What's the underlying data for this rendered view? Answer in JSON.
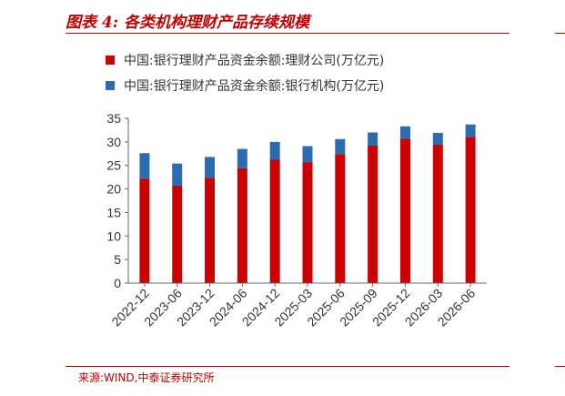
{
  "figure": {
    "title": "图表 4:  各类机构理财产品存续规模",
    "source": "来源:WIND,中泰证券研究所"
  },
  "colors": {
    "bank_subsidiary": "#cc0000",
    "bank": "#2b6cb0",
    "accent": "#c00000"
  },
  "chart_data": {
    "type": "bar",
    "stacked": true,
    "categories": [
      "2022-12",
      "2023-06",
      "2023-12",
      "2024-06",
      "2024-12",
      "2025-03",
      "2025-06",
      "2025-09",
      "2025-12",
      "2026-03",
      "2026-06"
    ],
    "series": [
      {
        "name": "中国:银行理财产品资金余额:理财公司(万亿元)",
        "color": "#cc0000",
        "values": [
          22.2,
          20.7,
          22.4,
          24.4,
          26.2,
          25.7,
          27.4,
          29.2,
          30.7,
          29.4,
          31.1
        ]
      },
      {
        "name": "中国:银行理财产品资金余额:银行机构(万亿元)",
        "color": "#2b6cb0",
        "values": [
          5.4,
          4.7,
          4.4,
          4.1,
          3.8,
          3.4,
          3.2,
          2.8,
          2.6,
          2.5,
          2.6
        ]
      }
    ],
    "ylim": [
      0,
      35
    ],
    "yticks": [
      0,
      5,
      10,
      15,
      20,
      25,
      30,
      35
    ],
    "xlabel": "",
    "ylabel": "",
    "grid": false,
    "legend_position": "top"
  }
}
